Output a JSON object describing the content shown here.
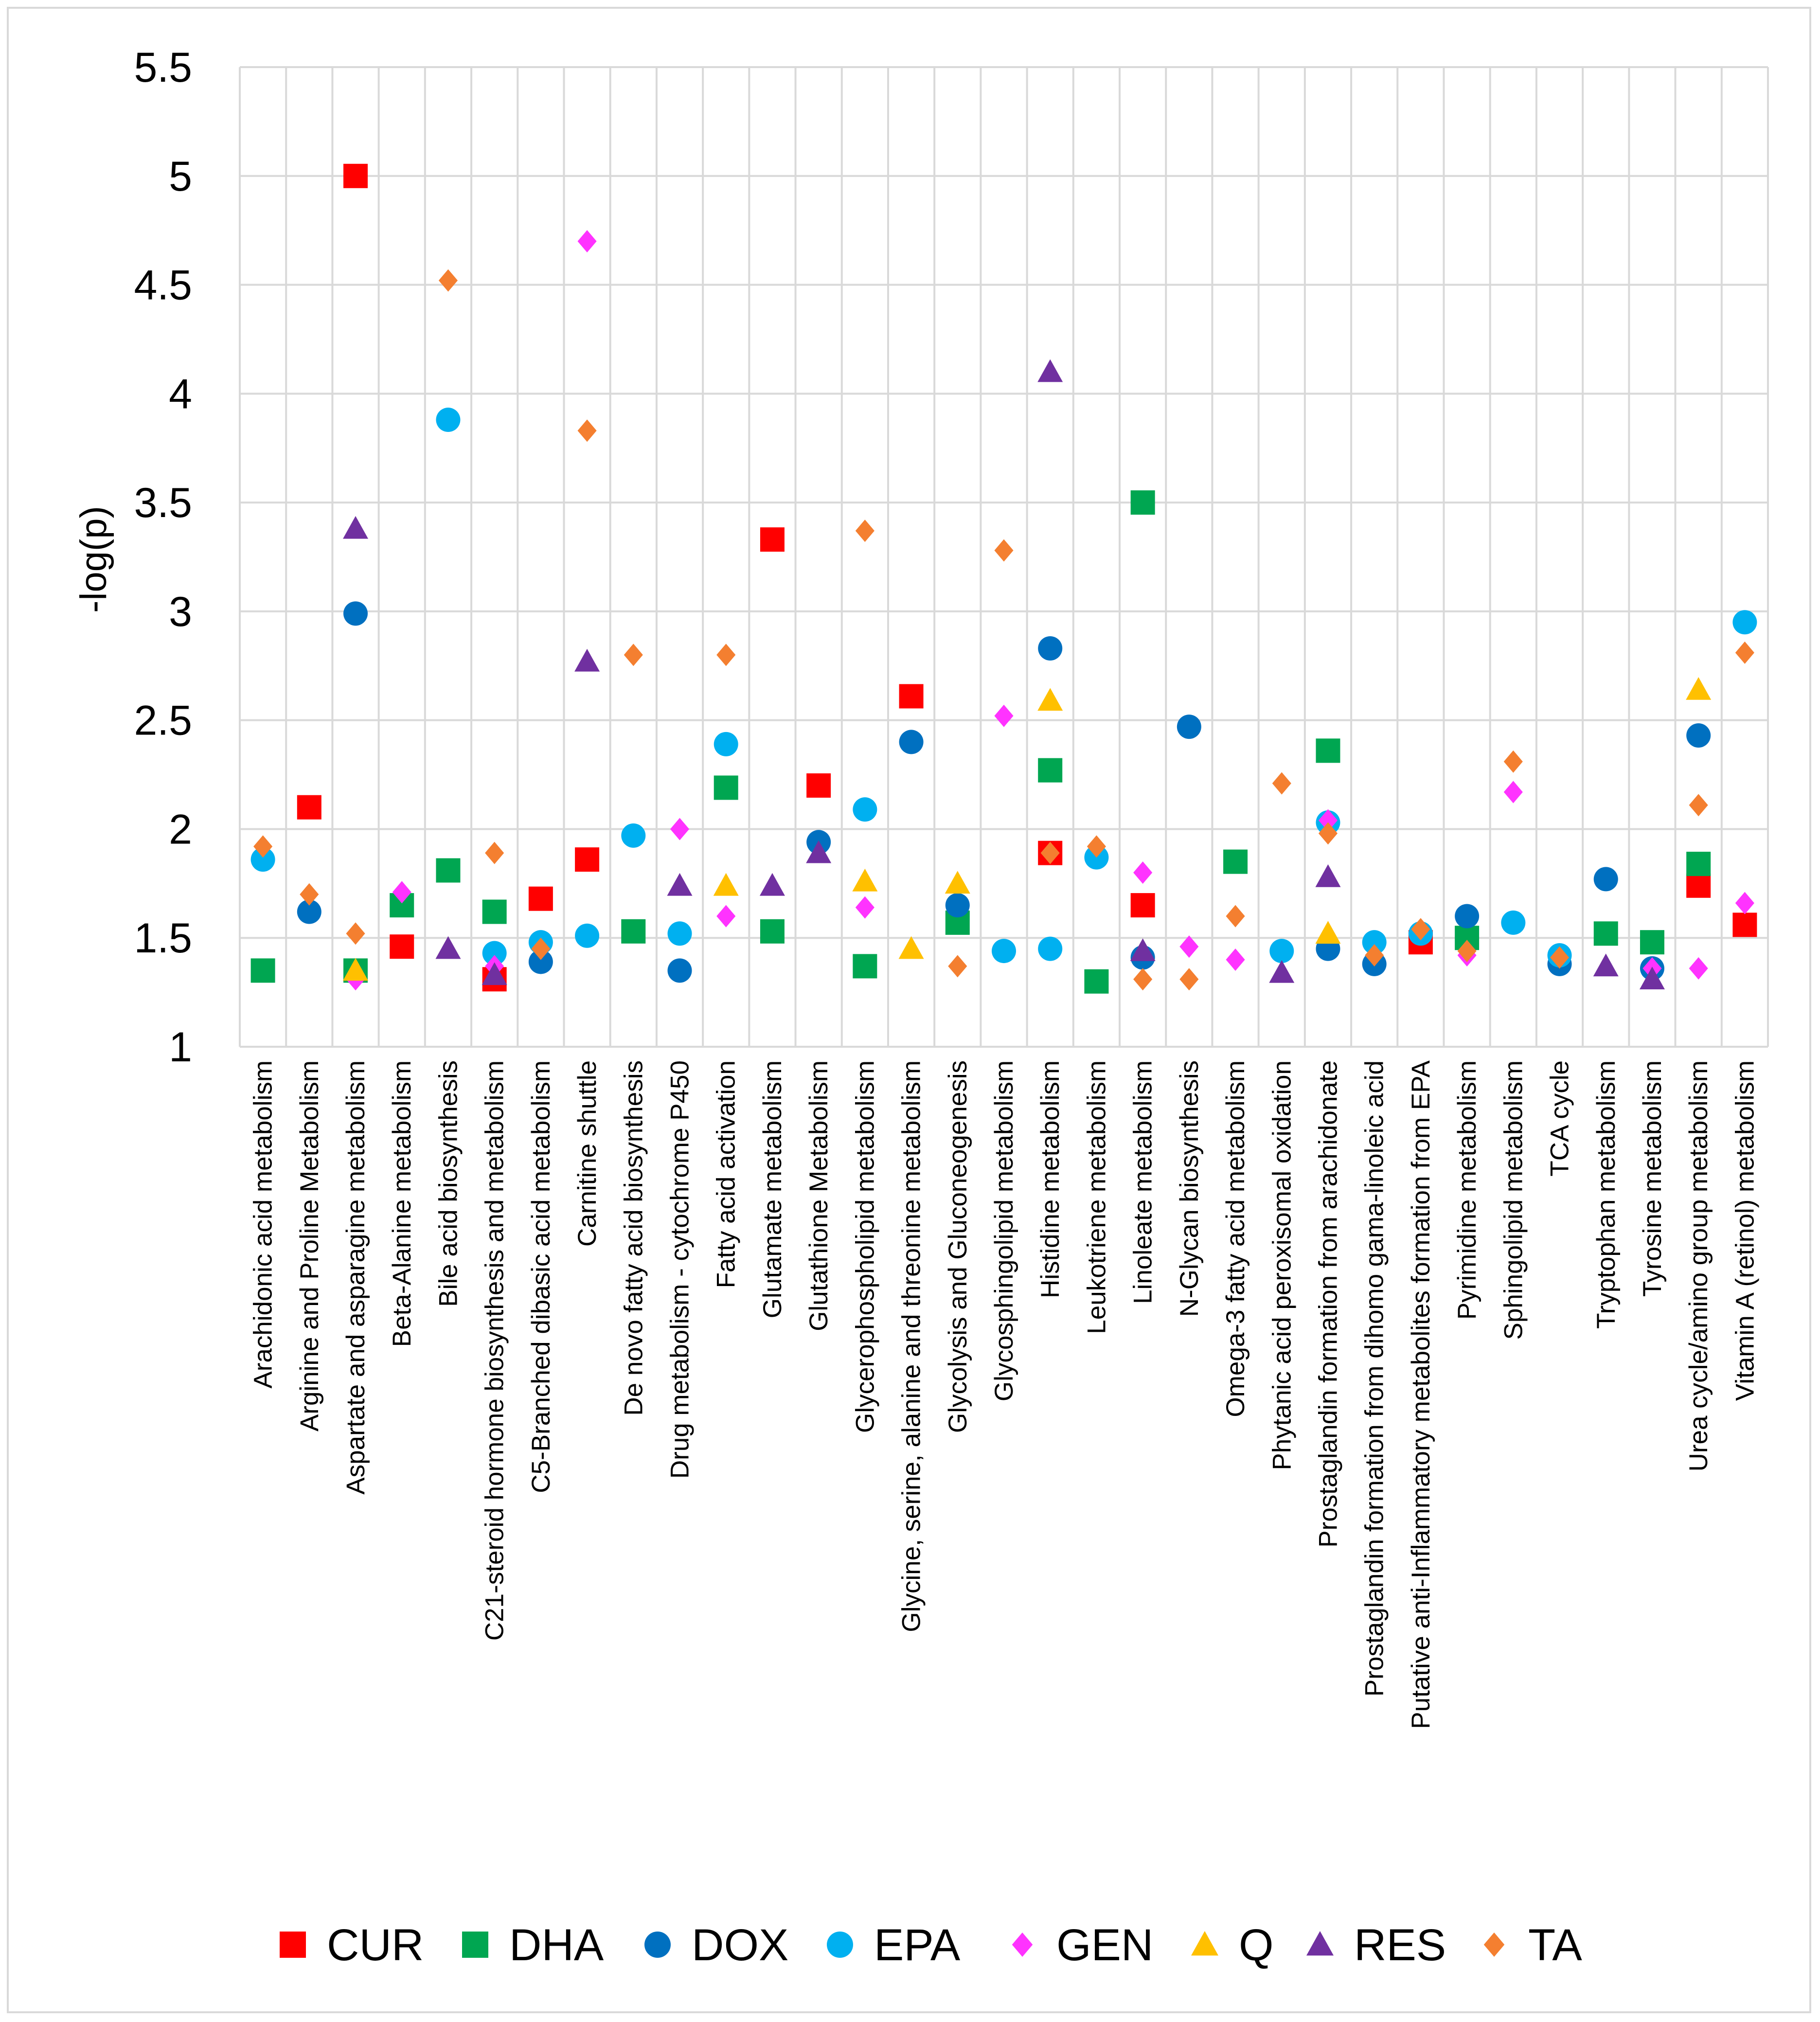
{
  "chart_data": {
    "type": "scatter",
    "title": "",
    "xlabel": "",
    "ylabel": "-log(p)",
    "ylim": [
      1,
      5.5
    ],
    "yticks": [
      "1",
      "1.5",
      "2",
      "2.5",
      "3",
      "3.5",
      "4",
      "4.5",
      "5",
      "5.5"
    ],
    "grid": true,
    "legend_position": "bottom",
    "categories": [
      "Arachidonic acid metabolism",
      "Arginine and Proline Metabolism",
      "Aspartate and asparagine metabolism",
      "Beta-Alanine metabolism",
      "Bile acid biosynthesis",
      "C21-steroid hormone biosynthesis and metabolism",
      "C5-Branched dibasic acid metabolism",
      "Carnitine shuttle",
      "De novo fatty acid biosynthesis",
      "Drug metabolism - cytochrome P450",
      "Fatty acid activation",
      "Glutamate metabolism",
      "Glutathione Metabolism",
      "Glycerophospholipid metabolism",
      "Glycine, serine, alanine and threonine metabolism",
      "Glycolysis and Gluconeogenesis",
      "Glycosphingolipid metabolism",
      "Histidine metabolism",
      "Leukotriene metabolism",
      "Linoleate metabolism",
      "N-Glycan biosynthesis",
      "Omega-3 fatty acid metabolism",
      "Phytanic acid peroxisomal oxidation",
      "Prostaglandin formation from arachidonate",
      "Prostaglandin formation from dihomo gama-linoleic acid",
      "Putative anti-Inflammatory metabolites formation from EPA",
      "Pyrimidine metabolism",
      "Sphingolipid metabolism",
      "TCA cycle",
      "Tryptophan metabolism",
      "Tyrosine metabolism",
      "Urea cycle/amino group metabolism",
      "Vitamin A (retinol) metabolism"
    ],
    "series": [
      {
        "name": "CUR",
        "marker": "square",
        "color": "#ff0000",
        "values": [
          null,
          2.1,
          5.0,
          1.46,
          null,
          1.31,
          1.68,
          1.86,
          null,
          null,
          null,
          3.33,
          2.2,
          null,
          2.61,
          null,
          null,
          1.89,
          null,
          1.65,
          null,
          null,
          null,
          null,
          null,
          1.48,
          null,
          null,
          null,
          null,
          null,
          1.74,
          1.56
        ]
      },
      {
        "name": "DHA",
        "marker": "square",
        "color": "#00a651",
        "values": [
          1.35,
          null,
          1.35,
          1.65,
          1.81,
          1.62,
          null,
          null,
          1.53,
          null,
          2.19,
          1.53,
          null,
          1.37,
          null,
          1.57,
          null,
          2.27,
          1.3,
          3.5,
          null,
          1.85,
          null,
          2.36,
          null,
          null,
          1.5,
          null,
          null,
          1.52,
          1.48,
          1.84,
          null
        ]
      },
      {
        "name": "DOX",
        "marker": "circle",
        "color": "#0070c0",
        "values": [
          null,
          1.62,
          2.99,
          null,
          null,
          null,
          1.39,
          null,
          null,
          1.35,
          null,
          null,
          1.94,
          null,
          2.4,
          1.65,
          null,
          2.83,
          null,
          1.41,
          2.47,
          null,
          null,
          1.45,
          1.38,
          null,
          1.6,
          null,
          1.38,
          1.77,
          1.36,
          2.43,
          null
        ]
      },
      {
        "name": "EPA",
        "marker": "circle",
        "color": "#00b0f0",
        "values": [
          1.86,
          null,
          null,
          null,
          3.88,
          1.43,
          1.48,
          1.51,
          1.97,
          1.52,
          2.39,
          null,
          null,
          2.09,
          null,
          null,
          1.44,
          1.45,
          1.87,
          null,
          null,
          null,
          1.44,
          2.03,
          1.48,
          1.52,
          null,
          1.57,
          1.42,
          null,
          null,
          null,
          2.95
        ]
      },
      {
        "name": "GEN",
        "marker": "diamond",
        "color": "#ff33ff",
        "values": [
          null,
          null,
          1.31,
          1.71,
          null,
          1.37,
          null,
          4.7,
          null,
          2.0,
          1.6,
          null,
          null,
          1.64,
          null,
          null,
          2.52,
          null,
          null,
          1.8,
          1.46,
          1.4,
          null,
          2.04,
          null,
          null,
          1.42,
          2.17,
          null,
          null,
          1.36,
          1.36,
          1.66
        ]
      },
      {
        "name": "Q",
        "marker": "triangle",
        "color": "#ffc000",
        "values": [
          null,
          null,
          1.35,
          null,
          null,
          null,
          null,
          null,
          null,
          null,
          1.74,
          null,
          null,
          1.76,
          1.45,
          1.75,
          null,
          2.59,
          null,
          null,
          null,
          null,
          null,
          1.52,
          null,
          null,
          null,
          null,
          null,
          null,
          null,
          2.64,
          null
        ]
      },
      {
        "name": "RES",
        "marker": "triangle",
        "color": "#7030a0",
        "values": [
          null,
          null,
          3.38,
          null,
          1.45,
          1.33,
          null,
          2.77,
          null,
          1.74,
          null,
          1.74,
          1.89,
          null,
          null,
          null,
          null,
          4.1,
          null,
          1.44,
          null,
          null,
          1.34,
          1.78,
          null,
          null,
          null,
          null,
          null,
          1.37,
          1.31,
          null,
          null
        ]
      },
      {
        "name": "TA",
        "marker": "diamond",
        "color": "#f47f30",
        "values": [
          1.92,
          1.7,
          1.52,
          null,
          4.52,
          1.89,
          1.45,
          3.83,
          2.8,
          null,
          2.8,
          null,
          null,
          3.37,
          null,
          1.37,
          3.28,
          1.89,
          1.92,
          1.31,
          1.31,
          1.6,
          2.21,
          1.98,
          1.42,
          1.54,
          1.44,
          2.31,
          1.41,
          null,
          null,
          2.11,
          2.81
        ]
      }
    ]
  }
}
